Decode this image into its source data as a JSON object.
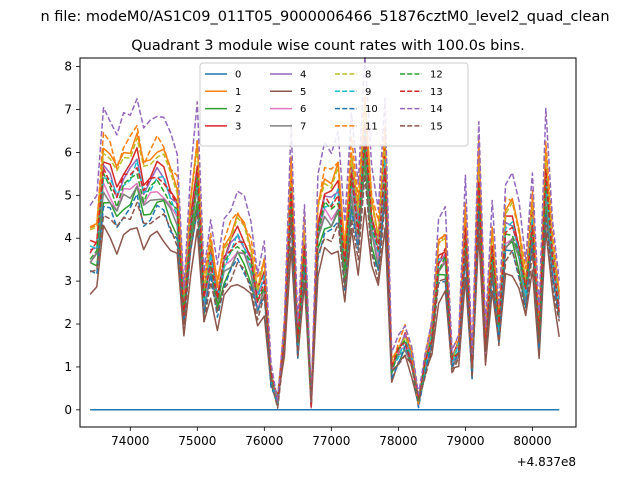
{
  "figure": {
    "suptitle": "n file: modeM0/AS1C09_011T05_9000006466_51876cztM0_level2_quad_clean",
    "title": "Quadrant 3 module wise count rates with 100.0s bins."
  },
  "chart_data": {
    "type": "line",
    "title": "Quadrant 3 module wise count rates with 100.0s bins.",
    "xlabel": "",
    "ylabel": "",
    "x_offset_label": "+4.837e8",
    "xlim": [
      73250,
      80650
    ],
    "ylim": [
      -0.4,
      8.2
    ],
    "xticks": [
      74000,
      75000,
      76000,
      77000,
      78000,
      79000,
      80000
    ],
    "yticks": [
      0,
      1,
      2,
      3,
      4,
      5,
      6,
      7,
      8
    ],
    "grid": false,
    "legend_position": "top-center",
    "legend_columns": 4,
    "x": [
      73400,
      73500,
      73600,
      73700,
      73800,
      73900,
      74000,
      74100,
      74200,
      74300,
      74400,
      74500,
      74600,
      74700,
      74800,
      74900,
      75000,
      75100,
      75200,
      75300,
      75400,
      75500,
      75600,
      75700,
      75800,
      75900,
      76000,
      76100,
      76200,
      76300,
      76400,
      76500,
      76600,
      76700,
      76800,
      76900,
      77000,
      77100,
      77200,
      77300,
      77400,
      77500,
      77600,
      77700,
      77800,
      77900,
      78000,
      78100,
      78200,
      78300,
      78400,
      78500,
      78600,
      78700,
      78800,
      78900,
      79000,
      79100,
      79200,
      79300,
      79400,
      79500,
      79600,
      79700,
      79800,
      79900,
      80000,
      80100,
      80200,
      80300,
      80400
    ],
    "base_profile": [
      3.9,
      4.0,
      5.8,
      5.6,
      5.2,
      5.6,
      5.7,
      6.0,
      5.3,
      5.5,
      5.7,
      5.6,
      5.2,
      4.9,
      2.4,
      4.5,
      5.8,
      2.7,
      3.7,
      2.7,
      3.6,
      3.9,
      4.2,
      4.0,
      3.6,
      2.7,
      3.2,
      0.8,
      0.2,
      1.8,
      5.4,
      1.6,
      4.0,
      0.2,
      4.4,
      5.1,
      5.0,
      5.3,
      3.5,
      5.7,
      4.4,
      6.7,
      4.6,
      3.9,
      6.0,
      1.0,
      1.4,
      1.7,
      1.2,
      0.2,
      1.1,
      1.8,
      3.6,
      3.8,
      1.2,
      1.5,
      4.4,
      1.0,
      5.6,
      1.6,
      3.9,
      2.0,
      4.4,
      4.5,
      3.9,
      2.9,
      4.6,
      1.8,
      5.7,
      3.7,
      2.5
    ],
    "series": [
      {
        "name": "0",
        "color": "#1f77b4",
        "dash": "solid",
        "scale": 0.0
      },
      {
        "name": "1",
        "color": "#ff7f0e",
        "dash": "solid",
        "scale": 1.07
      },
      {
        "name": "2",
        "color": "#2ca02c",
        "dash": "solid",
        "scale": 0.85
      },
      {
        "name": "3",
        "color": "#d62728",
        "dash": "solid",
        "scale": 1.0
      },
      {
        "name": "4",
        "color": "#9467bd",
        "dash": "solid",
        "scale": 0.97
      },
      {
        "name": "5",
        "color": "#8c564b",
        "dash": "solid",
        "scale": 0.72
      },
      {
        "name": "6",
        "color": "#e377c2",
        "dash": "solid",
        "scale": 0.9
      },
      {
        "name": "7",
        "color": "#7f7f7f",
        "dash": "solid",
        "scale": 0.88
      },
      {
        "name": "8",
        "color": "#bcbd22",
        "dash": "dashed",
        "scale": 1.05
      },
      {
        "name": "9",
        "color": "#17becf",
        "dash": "dashed",
        "scale": 0.95
      },
      {
        "name": "10",
        "color": "#1f77b4",
        "dash": "dashed",
        "scale": 0.82
      },
      {
        "name": "11",
        "color": "#ff7f0e",
        "dash": "dashed",
        "scale": 1.1
      },
      {
        "name": "12",
        "color": "#2ca02c",
        "dash": "dashed",
        "scale": 0.93
      },
      {
        "name": "13",
        "color": "#d62728",
        "dash": "dashed",
        "scale": 0.96
      },
      {
        "name": "14",
        "color": "#9467bd",
        "dash": "dashed",
        "scale": 1.22
      },
      {
        "name": "15",
        "color": "#8c564b",
        "dash": "dashed",
        "scale": 0.8
      }
    ]
  }
}
